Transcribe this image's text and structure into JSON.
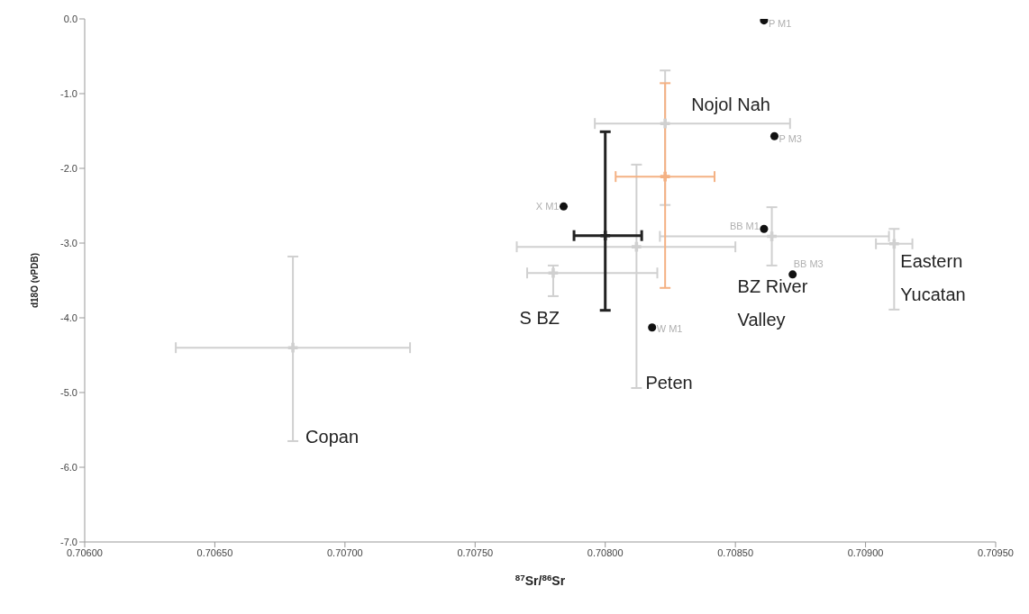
{
  "chart_data": {
    "type": "scatter",
    "xlabel": "$^{87}$Sr/$^{86}$Sr",
    "ylabel": "d18O (vPDB)",
    "xlim": [
      0.706,
      0.7095
    ],
    "xticks": [
      {
        "value": 0.706,
        "label": "0.70600"
      },
      {
        "value": 0.7065,
        "label": "0.70650"
      },
      {
        "value": 0.707,
        "label": "0.70700"
      },
      {
        "value": 0.7075,
        "label": "0.70750"
      },
      {
        "value": 0.708,
        "label": "0.70800"
      },
      {
        "value": 0.7085,
        "label": "0.70850"
      },
      {
        "value": 0.709,
        "label": "0.70900"
      },
      {
        "value": 0.7095,
        "label": "0.70950"
      }
    ],
    "ylim": [
      -7,
      0
    ],
    "yticks": [
      {
        "value": -7,
        "label": "-7.0"
      },
      {
        "value": -6,
        "label": "-6.0"
      },
      {
        "value": -5,
        "label": "-5.0"
      },
      {
        "value": -4,
        "label": "-4.0"
      },
      {
        "value": -3,
        "label": "-3.0"
      },
      {
        "value": -2,
        "label": "-2.0"
      },
      {
        "value": -1,
        "label": "-1.0"
      },
      {
        "value": 0,
        "label": "0.0"
      }
    ],
    "series": [
      {
        "color": "#d0d0d0",
        "marker": "cross",
        "x": [
          0.7068
        ],
        "values": [
          -4.4
        ],
        "xerrors": [
          [
            0.70635,
            0.70725
          ]
        ],
        "errors": [
          [
            -5.65,
            -3.18
          ]
        ]
      },
      {
        "color": "#d0d0d0",
        "marker": "cross",
        "x": [
          0.7078
        ],
        "values": [
          -3.4
        ],
        "xerrors": [
          [
            0.7077,
            0.7082
          ]
        ],
        "errors": [
          [
            -3.71,
            -3.3
          ]
        ]
      },
      {
        "color": "#d0d0d0",
        "marker": "cross",
        "x": [
          0.70812
        ],
        "values": [
          -3.05
        ],
        "xerrors": [
          [
            0.70766,
            0.7085
          ]
        ],
        "errors": [
          [
            -4.94,
            -1.95
          ]
        ]
      },
      {
        "color": "#d0d0d0",
        "marker": "cross",
        "x": [
          0.70823
        ],
        "values": [
          -1.4
        ],
        "xerrors": [
          [
            0.70796,
            0.70871
          ]
        ],
        "errors": [
          [
            -2.49,
            -0.69
          ]
        ]
      },
      {
        "color": "#d0d0d0",
        "marker": "cross",
        "x": [
          0.70864
        ],
        "values": [
          -2.91
        ],
        "xerrors": [
          [
            0.70821,
            0.70909
          ]
        ],
        "errors": [
          [
            -3.3,
            -2.52
          ]
        ]
      },
      {
        "color": "#d0d0d0",
        "marker": "cross",
        "x": [
          0.70911
        ],
        "values": [
          -3.01
        ],
        "xerrors": [
          [
            0.70904,
            0.70918
          ]
        ],
        "errors": [
          [
            -3.89,
            -2.81
          ]
        ]
      },
      {
        "color": "#f4b183",
        "marker": "cross",
        "x": [
          0.70823
        ],
        "values": [
          -2.11
        ],
        "xerrors": [
          [
            0.70804,
            0.70842
          ]
        ],
        "errors": [
          [
            -3.6,
            -0.86
          ]
        ]
      },
      {
        "color": "#222222",
        "marker": "cross",
        "x": [
          0.708
        ],
        "values": [
          -2.9
        ],
        "xerrors": [
          [
            0.70788,
            0.70814
          ]
        ],
        "errors": [
          [
            -3.9,
            -1.51
          ]
        ]
      },
      {
        "color": "#111111",
        "marker": "circle",
        "x": [
          0.70861,
          0.70865,
          0.70784,
          0.70861,
          0.70872,
          0.70818
        ],
        "values": [
          -0.02,
          -1.57,
          -2.51,
          -2.81,
          -3.42,
          -4.13
        ]
      }
    ],
    "annotations": [
      {
        "text": "Copan",
        "x": 0.7068,
        "y": -5.65
      },
      {
        "text": "S BZ",
        "x": 0.7078,
        "y": -3.4
      },
      {
        "text": "Peten",
        "x": 0.70812,
        "y": -4.94
      },
      {
        "text": "Nojol Nah",
        "x": 0.70823,
        "y": -1.4
      },
      {
        "text": "BZ River Valley",
        "x": 0.70864,
        "y": -2.91
      },
      {
        "text": "Eastern Yucatan",
        "x": 0.70911,
        "y": -3.01
      },
      {
        "text": "P M1",
        "x": 0.70861,
        "y": -0.02
      },
      {
        "text": "P M3",
        "x": 0.70865,
        "y": -1.57
      },
      {
        "text": "X M1",
        "x": 0.70784,
        "y": -2.51
      },
      {
        "text": "BB M1",
        "x": 0.70861,
        "y": -2.81
      },
      {
        "text": "BB M3",
        "x": 0.70872,
        "y": -3.42
      },
      {
        "text": "W M1",
        "x": 0.70818,
        "y": -4.13
      }
    ]
  }
}
